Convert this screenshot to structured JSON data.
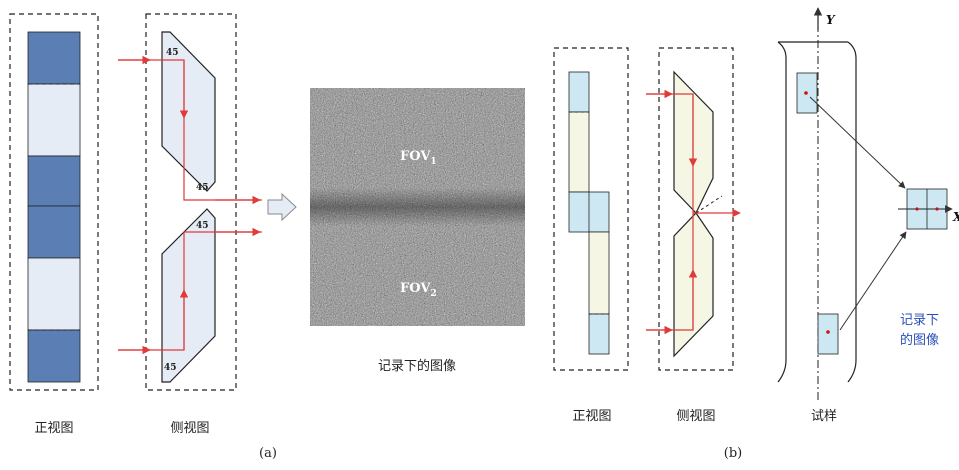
{
  "colors": {
    "dark_blue": "#5b7fb4",
    "light_blue": "#e6ecf6",
    "cyan": "#cde8f3",
    "pale_yellow": "#f5f7e4",
    "prism_fill": "#e6ecf6",
    "ray": "#e03a3a",
    "red_dot": "#d01010",
    "blue_text": "#2a4fb8"
  },
  "panel_a": {
    "front_label": "正视图",
    "side_label": "侧视图",
    "angles": [
      "45",
      "45",
      "45",
      "45"
    ],
    "image_label": "记录下的图像",
    "fov1_main": "FOV",
    "fov1_sub": "1",
    "fov2_main": "FOV",
    "fov2_sub": "2",
    "caption": "(a)"
  },
  "panel_b": {
    "front_label": "正视图",
    "side_label": "侧视图",
    "specimen_label": "试样",
    "axis_y": "Y",
    "axis_x": "X",
    "recorded_line1": "记录下",
    "recorded_line2": "的图像",
    "caption": "(b)"
  }
}
